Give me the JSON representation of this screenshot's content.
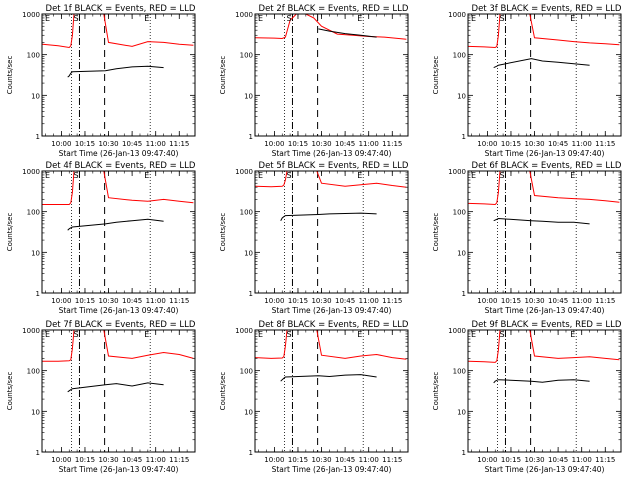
{
  "chart_data": [
    {
      "type": "line",
      "title": "Det 1f BLACK = Events, RED = LLD",
      "ylabel": "Counts/sec",
      "xlabel": "Start Time (26-Jan-13 09:47:40)",
      "ylim": [
        1,
        1000
      ],
      "y_scale": "log",
      "yticks": [
        1,
        10,
        100,
        1000
      ],
      "xticks": [
        "10:00",
        "10:15",
        "10:30",
        "10:45",
        "11:00",
        "11:15"
      ],
      "flags": [
        "E",
        "S",
        "E"
      ],
      "x_range": [
        "09:47:40",
        "11:25"
      ],
      "solid_vertical_lines": [
        "10:06:30",
        "10:11:30",
        "10:56:30"
      ],
      "dashed_vertical_lines": [
        "10:11:30",
        "10:27:30"
      ],
      "series": [
        {
          "name": "RED = LLD",
          "color": "#ff0000",
          "x": [
            "09:48",
            "09:58",
            "10:05",
            "10:06",
            "10:07",
            "10:08",
            "10:20",
            "10:27",
            "10:30",
            "10:45",
            "10:55",
            "11:05",
            "11:15",
            "11:24"
          ],
          "values": [
            180,
            165,
            150,
            165,
            300,
            1000,
            1000,
            1000,
            200,
            160,
            210,
            200,
            180,
            170
          ]
        },
        {
          "name": "BLACK = Events",
          "color": "#000000",
          "x": [
            "10:04",
            "10:05",
            "10:06",
            "10:07",
            "10:28",
            "10:35",
            "10:45",
            "10:55",
            "11:05"
          ],
          "values": [
            28,
            30,
            35,
            38,
            40,
            45,
            50,
            52,
            48
          ]
        }
      ]
    },
    {
      "type": "line",
      "title": "Det 2f BLACK = Events, RED = LLD",
      "ylabel": "Counts/sec",
      "xlabel": "Start Time (26-Jan-13 09:47:40)",
      "ylim": [
        1,
        1000
      ],
      "y_scale": "log",
      "yticks": [
        1,
        10,
        100,
        1000
      ],
      "xticks": [
        "10:00",
        "10:15",
        "10:30",
        "10:45",
        "11:00",
        "11:15"
      ],
      "flags": [
        "E",
        "S",
        "E"
      ],
      "x_range": [
        "09:47:40",
        "11:25"
      ],
      "solid_vertical_lines": [
        "10:06:30",
        "10:11:30",
        "10:56:30"
      ],
      "dashed_vertical_lines": [
        "10:11:30",
        "10:27:30"
      ],
      "series": [
        {
          "name": "RED = LLD",
          "color": "#ff0000",
          "x": [
            "09:48",
            "10:00",
            "10:05",
            "10:07",
            "10:10",
            "10:14",
            "10:20",
            "10:25",
            "10:30",
            "10:40",
            "10:50",
            "11:00",
            "11:10",
            "11:24"
          ],
          "values": [
            260,
            255,
            250,
            270,
            700,
            1000,
            1000,
            800,
            500,
            320,
            300,
            280,
            270,
            240
          ]
        },
        {
          "name": "BLACK = Events",
          "color": "#000000",
          "x": [
            "10:28",
            "10:35",
            "10:45",
            "10:55",
            "11:05"
          ],
          "values": [
            430,
            380,
            330,
            300,
            270
          ]
        }
      ]
    },
    {
      "type": "line",
      "title": "Det 3f BLACK = Events, RED = LLD",
      "ylabel": "Counts/sec",
      "xlabel": "Start Time (26-Jan-13 09:47:40)",
      "ylim": [
        1,
        1000
      ],
      "y_scale": "log",
      "yticks": [
        1,
        10,
        100,
        1000
      ],
      "xticks": [
        "10:00",
        "10:15",
        "10:30",
        "10:45",
        "11:00",
        "11:15"
      ],
      "flags": [
        "E",
        "S",
        "E"
      ],
      "x_range": [
        "09:47:40",
        "11:25"
      ],
      "solid_vertical_lines": [
        "10:06:30",
        "10:11:30",
        "10:56:30"
      ],
      "dashed_vertical_lines": [
        "10:11:30",
        "10:27:30"
      ],
      "series": [
        {
          "name": "RED = LLD",
          "color": "#ff0000",
          "x": [
            "09:48",
            "09:58",
            "10:05",
            "10:06",
            "10:07",
            "10:08",
            "10:20",
            "10:27",
            "10:30",
            "10:45",
            "10:55",
            "11:05",
            "11:15",
            "11:24"
          ],
          "values": [
            160,
            155,
            150,
            160,
            300,
            1000,
            1000,
            1000,
            260,
            230,
            210,
            195,
            185,
            175
          ]
        },
        {
          "name": "BLACK = Events",
          "color": "#000000",
          "x": [
            "10:04",
            "10:05",
            "10:06",
            "10:07",
            "10:28",
            "10:35",
            "10:45",
            "10:55",
            "11:05"
          ],
          "values": [
            48,
            50,
            52,
            55,
            80,
            70,
            65,
            60,
            55
          ]
        }
      ]
    },
    {
      "type": "line",
      "title": "Det 4f BLACK = Events, RED = LLD",
      "ylabel": "Counts/sec",
      "xlabel": "Start Time (26-Jan-13 09:47:40)",
      "ylim": [
        1,
        1000
      ],
      "y_scale": "log",
      "yticks": [
        1,
        10,
        100,
        1000
      ],
      "xticks": [
        "10:00",
        "10:15",
        "10:30",
        "10:45",
        "11:00",
        "11:15"
      ],
      "flags": [
        "E",
        "S",
        "E"
      ],
      "x_range": [
        "09:47:40",
        "11:25"
      ],
      "solid_vertical_lines": [
        "10:06:30",
        "10:11:30",
        "10:56:30"
      ],
      "dashed_vertical_lines": [
        "10:11:30",
        "10:27:30"
      ],
      "series": [
        {
          "name": "RED = LLD",
          "color": "#ff0000",
          "x": [
            "09:48",
            "09:58",
            "10:05",
            "10:06",
            "10:07",
            "10:08",
            "10:20",
            "10:27",
            "10:30",
            "10:45",
            "10:55",
            "11:05",
            "11:15",
            "11:24"
          ],
          "values": [
            150,
            150,
            150,
            165,
            300,
            1000,
            1000,
            1000,
            220,
            190,
            180,
            200,
            180,
            165
          ]
        },
        {
          "name": "BLACK = Events",
          "color": "#000000",
          "x": [
            "10:04",
            "10:05",
            "10:06",
            "10:07",
            "10:28",
            "10:35",
            "10:45",
            "10:55",
            "11:05"
          ],
          "values": [
            35,
            38,
            40,
            42,
            50,
            55,
            60,
            65,
            58
          ]
        }
      ]
    },
    {
      "type": "line",
      "title": "Det 5f BLACK = Events, RED = LLD",
      "ylabel": "Counts/sec",
      "xlabel": "Start Time (26-Jan-13 09:47:40)",
      "ylim": [
        1,
        1000
      ],
      "y_scale": "log",
      "yticks": [
        1,
        10,
        100,
        1000
      ],
      "xticks": [
        "10:00",
        "10:15",
        "10:30",
        "10:45",
        "11:00",
        "11:15"
      ],
      "flags": [
        "E",
        "S",
        "E"
      ],
      "x_range": [
        "09:47:40",
        "11:25"
      ],
      "solid_vertical_lines": [
        "10:06:30",
        "10:11:30",
        "10:56:30"
      ],
      "dashed_vertical_lines": [
        "10:11:30",
        "10:27:30"
      ],
      "series": [
        {
          "name": "RED = LLD",
          "color": "#ff0000",
          "x": [
            "09:48",
            "09:58",
            "10:05",
            "10:06",
            "10:07",
            "10:08",
            "10:20",
            "10:27",
            "10:30",
            "10:45",
            "10:55",
            "11:05",
            "11:15",
            "11:24"
          ],
          "values": [
            420,
            410,
            420,
            450,
            600,
            1000,
            1000,
            1000,
            500,
            420,
            460,
            500,
            440,
            400
          ]
        },
        {
          "name": "BLACK = Events",
          "color": "#000000",
          "x": [
            "10:04",
            "10:05",
            "10:06",
            "10:07",
            "10:28",
            "10:35",
            "10:45",
            "10:55",
            "11:05"
          ],
          "values": [
            60,
            70,
            75,
            80,
            85,
            88,
            90,
            92,
            88
          ]
        }
      ]
    },
    {
      "type": "line",
      "title": "Det 6f BLACK = Events, RED = LLD",
      "ylabel": "Counts/sec",
      "xlabel": "Start Time (26-Jan-13 09:47:40)",
      "ylim": [
        1,
        1000
      ],
      "y_scale": "log",
      "yticks": [
        1,
        10,
        100,
        1000
      ],
      "xticks": [
        "10:00",
        "10:15",
        "10:30",
        "10:45",
        "11:00",
        "11:15"
      ],
      "flags": [
        "E",
        "S",
        "E"
      ],
      "x_range": [
        "09:47:40",
        "11:25"
      ],
      "solid_vertical_lines": [
        "10:06:30",
        "10:11:30",
        "10:56:30"
      ],
      "dashed_vertical_lines": [
        "10:11:30",
        "10:27:30"
      ],
      "series": [
        {
          "name": "RED = LLD",
          "color": "#ff0000",
          "x": [
            "09:48",
            "09:58",
            "10:05",
            "10:06",
            "10:07",
            "10:08",
            "10:20",
            "10:27",
            "10:30",
            "10:45",
            "10:55",
            "11:05",
            "11:15",
            "11:24"
          ],
          "values": [
            160,
            155,
            150,
            165,
            300,
            1000,
            1000,
            1000,
            250,
            220,
            210,
            200,
            185,
            170
          ]
        },
        {
          "name": "BLACK = Events",
          "color": "#000000",
          "x": [
            "10:04",
            "10:05",
            "10:06",
            "10:07",
            "10:28",
            "10:35",
            "10:45",
            "10:55",
            "11:05"
          ],
          "values": [
            60,
            62,
            65,
            68,
            60,
            58,
            55,
            55,
            50
          ]
        }
      ]
    },
    {
      "type": "line",
      "title": "Det 7f BLACK = Events, RED = LLD",
      "ylabel": "Counts/sec",
      "xlabel": "Start Time (26-Jan-13 09:47:40)",
      "ylim": [
        1,
        1000
      ],
      "y_scale": "log",
      "yticks": [
        1,
        10,
        100,
        1000
      ],
      "xticks": [
        "10:00",
        "10:15",
        "10:30",
        "10:45",
        "11:00",
        "11:15"
      ],
      "flags": [
        "E",
        "S",
        "E"
      ],
      "x_range": [
        "09:47:40",
        "11:25"
      ],
      "solid_vertical_lines": [
        "10:06:30",
        "10:11:30",
        "10:56:30"
      ],
      "dashed_vertical_lines": [
        "10:11:30",
        "10:27:30"
      ],
      "series": [
        {
          "name": "RED = LLD",
          "color": "#ff0000",
          "x": [
            "09:48",
            "09:58",
            "10:05",
            "10:06",
            "10:07",
            "10:08",
            "10:20",
            "10:27",
            "10:30",
            "10:45",
            "10:55",
            "11:05",
            "11:15",
            "11:24"
          ],
          "values": [
            170,
            170,
            175,
            185,
            350,
            1000,
            1000,
            1000,
            230,
            200,
            240,
            280,
            250,
            200
          ]
        },
        {
          "name": "BLACK = Events",
          "color": "#000000",
          "x": [
            "10:04",
            "10:05",
            "10:06",
            "10:07",
            "10:28",
            "10:35",
            "10:45",
            "10:55",
            "11:05"
          ],
          "values": [
            30,
            32,
            34,
            36,
            45,
            48,
            42,
            50,
            45
          ]
        }
      ]
    },
    {
      "type": "line",
      "title": "Det 8f BLACK = Events, RED = LLD",
      "ylabel": "Counts/sec",
      "xlabel": "Start Time (26-Jan-13 09:47:40)",
      "ylim": [
        1,
        1000
      ],
      "y_scale": "log",
      "yticks": [
        1,
        10,
        100,
        1000
      ],
      "xticks": [
        "10:00",
        "10:15",
        "10:30",
        "10:45",
        "11:00",
        "11:15"
      ],
      "flags": [
        "E",
        "S",
        "E"
      ],
      "x_range": [
        "09:47:40",
        "11:25"
      ],
      "solid_vertical_lines": [
        "10:06:30",
        "10:11:30",
        "10:56:30"
      ],
      "dashed_vertical_lines": [
        "10:11:30",
        "10:27:30"
      ],
      "series": [
        {
          "name": "RED = LLD",
          "color": "#ff0000",
          "x": [
            "09:48",
            "09:58",
            "10:05",
            "10:06",
            "10:07",
            "10:08",
            "10:20",
            "10:27",
            "10:30",
            "10:45",
            "10:55",
            "11:05",
            "11:15",
            "11:24"
          ],
          "values": [
            210,
            200,
            205,
            220,
            400,
            1000,
            1000,
            1000,
            240,
            200,
            230,
            250,
            210,
            190
          ]
        },
        {
          "name": "BLACK = Events",
          "color": "#000000",
          "x": [
            "10:04",
            "10:05",
            "10:06",
            "10:07",
            "10:28",
            "10:35",
            "10:45",
            "10:55",
            "11:05"
          ],
          "values": [
            55,
            60,
            65,
            70,
            75,
            72,
            78,
            80,
            70
          ]
        }
      ]
    },
    {
      "type": "line",
      "title": "Det 9f BLACK = Events, RED = LLD",
      "ylabel": "Counts/sec",
      "xlabel": "Start Time (26-Jan-13 09:47:40)",
      "ylim": [
        1,
        1000
      ],
      "y_scale": "log",
      "yticks": [
        1,
        10,
        100,
        1000
      ],
      "xticks": [
        "10:00",
        "10:15",
        "10:30",
        "10:45",
        "11:00",
        "11:15"
      ],
      "flags": [
        "E",
        "S",
        "E"
      ],
      "x_range": [
        "09:47:40",
        "11:25"
      ],
      "solid_vertical_lines": [
        "10:06:30",
        "10:11:30",
        "10:56:30"
      ],
      "dashed_vertical_lines": [
        "10:11:30",
        "10:27:30"
      ],
      "series": [
        {
          "name": "RED = LLD",
          "color": "#ff0000",
          "x": [
            "09:48",
            "09:58",
            "10:05",
            "10:06",
            "10:07",
            "10:08",
            "10:20",
            "10:27",
            "10:30",
            "10:45",
            "10:55",
            "11:05",
            "11:15",
            "11:24"
          ],
          "values": [
            170,
            165,
            160,
            175,
            320,
            1000,
            1000,
            1000,
            230,
            200,
            210,
            220,
            200,
            185
          ]
        },
        {
          "name": "BLACK = Events",
          "color": "#000000",
          "x": [
            "10:04",
            "10:05",
            "10:06",
            "10:07",
            "10:28",
            "10:35",
            "10:45",
            "10:55",
            "11:05"
          ],
          "values": [
            50,
            55,
            58,
            60,
            55,
            52,
            58,
            60,
            55
          ]
        }
      ]
    }
  ]
}
